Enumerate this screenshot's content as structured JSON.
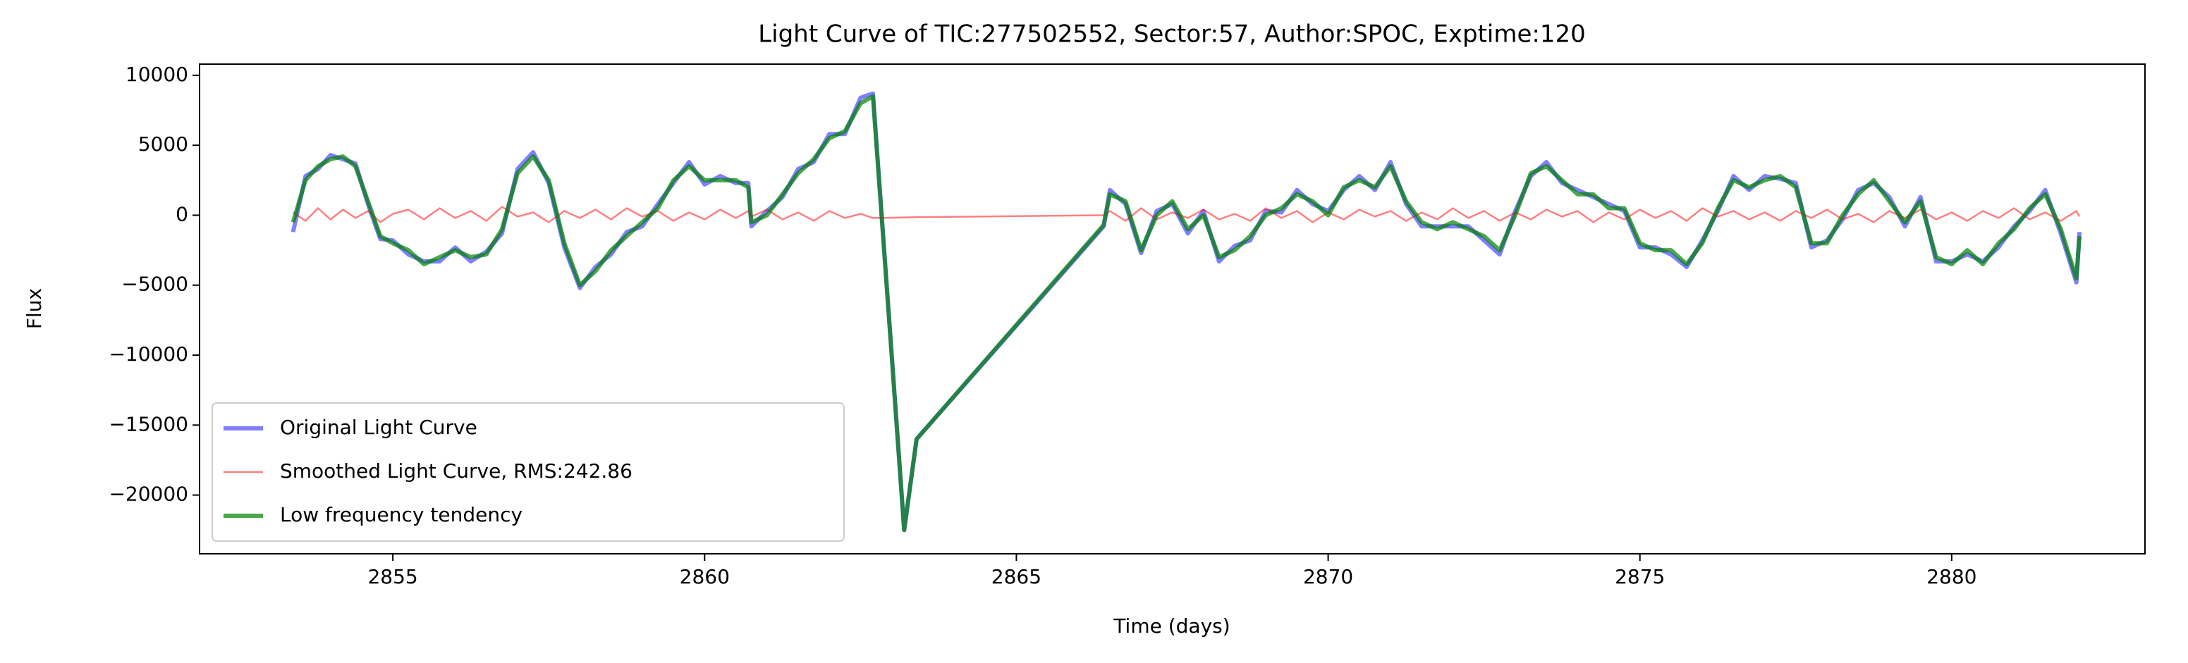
{
  "chart_data": {
    "type": "line",
    "title": "Light Curve of TIC:277502552, Sector:57, Author:SPOC, Exptime:120",
    "x_label": "Time (days)",
    "y_label": "Flux",
    "xlim": [
      2851.9,
      2883.1
    ],
    "ylim": [
      -24200,
      10800
    ],
    "xticks": [
      2855,
      2860,
      2865,
      2870,
      2875,
      2880
    ],
    "yticks": [
      10000,
      5000,
      0,
      {
        "value": -5000,
        "label": "−5000"
      },
      {
        "value": -10000,
        "label": "−10000"
      },
      {
        "value": -15000,
        "label": "−15000"
      },
      {
        "value": -20000,
        "label": "−20000"
      }
    ],
    "legend": "lower left",
    "x": [
      2853.4,
      2853.6,
      2853.8,
      2854.0,
      2854.2,
      2854.4,
      2854.6,
      2854.8,
      2855.0,
      2855.25,
      2855.5,
      2855.75,
      2856.0,
      2856.25,
      2856.5,
      2856.75,
      2857.0,
      2857.25,
      2857.5,
      2857.75,
      2858.0,
      2858.25,
      2858.5,
      2858.75,
      2859.0,
      2859.25,
      2859.5,
      2859.75,
      2860.0,
      2860.25,
      2860.5,
      2860.7,
      2860.75,
      2861.0,
      2861.25,
      2861.5,
      2861.75,
      2862.0,
      2862.25,
      2862.5,
      2862.7,
      2863.0,
      2863.2,
      2863.4,
      2866.4,
      2866.5,
      2866.75,
      2867.0,
      2867.25,
      2867.5,
      2867.75,
      2868.0,
      2868.25,
      2868.5,
      2868.75,
      2869.0,
      2869.25,
      2869.5,
      2869.75,
      2870.0,
      2870.25,
      2870.5,
      2870.75,
      2871.0,
      2871.25,
      2871.5,
      2871.75,
      2872.0,
      2872.25,
      2872.5,
      2872.75,
      2873.0,
      2873.25,
      2873.5,
      2873.75,
      2874.0,
      2874.25,
      2874.5,
      2874.75,
      2875.0,
      2875.25,
      2875.5,
      2875.75,
      2876.0,
      2876.25,
      2876.5,
      2876.75,
      2877.0,
      2877.25,
      2877.5,
      2877.75,
      2878.0,
      2878.25,
      2878.5,
      2878.75,
      2879.0,
      2879.25,
      2879.5,
      2879.75,
      2880.0,
      2880.25,
      2880.5,
      2880.75,
      2881.0,
      2881.25,
      2881.5,
      2881.75,
      2882.0,
      2882.05
    ],
    "series": [
      {
        "name": "Original Light Curve",
        "color": "#0000ff",
        "opacity": 0.5,
        "width": 6,
        "values": [
          -1200,
          2800,
          3300,
          4300,
          4000,
          3700,
          800,
          -1700,
          -1800,
          -2800,
          -3300,
          -3300,
          -2300,
          -3300,
          -2600,
          -1300,
          3300,
          4500,
          2300,
          -2300,
          -5200,
          -3700,
          -2800,
          -1200,
          -800,
          800,
          2300,
          3800,
          2200,
          2800,
          2300,
          2300,
          -800,
          300,
          1300,
          3300,
          3800,
          5800,
          5800,
          8400,
          8700,
          -10000,
          -22500,
          -16000,
          -800,
          1800,
          800,
          -2700,
          300,
          800,
          -1300,
          300,
          -3300,
          -2200,
          -1800,
          300,
          200,
          1800,
          800,
          300,
          1800,
          2800,
          1800,
          3800,
          800,
          -800,
          -800,
          -800,
          -800,
          -1800,
          -2800,
          300,
          2800,
          3800,
          2300,
          1800,
          1300,
          800,
          300,
          -2300,
          -2300,
          -2800,
          -3700,
          -1800,
          300,
          2800,
          1800,
          2800,
          2600,
          2300,
          -2300,
          -1800,
          -300,
          1800,
          2300,
          1300,
          -800,
          1300,
          -3300,
          -3300,
          -2800,
          -3300,
          -2300,
          -800,
          300,
          1800,
          -1300,
          -4800,
          -1200
        ]
      },
      {
        "name": "Smoothed Light Curve, RMS:242.86",
        "color": "#ff0000",
        "opacity": 0.5,
        "width": 2.5,
        "values": [
          200,
          -400,
          500,
          -300,
          400,
          -200,
          300,
          -500,
          100,
          400,
          -300,
          500,
          -200,
          300,
          -400,
          600,
          -100,
          200,
          -500,
          300,
          -200,
          400,
          -300,
          500,
          -100,
          300,
          -400,
          200,
          -300,
          400,
          -200,
          300,
          -100,
          400,
          -300,
          200,
          -400,
          300,
          -200,
          100,
          -200,
          -180,
          -160,
          -140,
          0,
          300,
          -400,
          500,
          -300,
          200,
          -200,
          400,
          -300,
          100,
          -400,
          500,
          -200,
          300,
          -500,
          200,
          -300,
          400,
          -100,
          300,
          -400,
          200,
          -300,
          500,
          -200,
          300,
          -400,
          200,
          -300,
          400,
          -100,
          300,
          -500,
          200,
          -300,
          400,
          -200,
          300,
          -400,
          500,
          -100,
          300,
          -300,
          200,
          -400,
          300,
          -200,
          400,
          -300,
          100,
          -500,
          300,
          -200,
          400,
          -300,
          200,
          -400,
          300,
          -200,
          500,
          -300,
          200,
          -400,
          300,
          -100
        ]
      },
      {
        "name": "Low frequency tendency",
        "color": "#008000",
        "opacity": 0.7,
        "width": 6,
        "values": [
          -500,
          2500,
          3500,
          4000,
          4200,
          3500,
          1000,
          -1500,
          -2000,
          -2500,
          -3500,
          -3000,
          -2500,
          -3000,
          -2800,
          -1000,
          3000,
          4200,
          2500,
          -2000,
          -5000,
          -4000,
          -2500,
          -1500,
          -500,
          500,
          2500,
          3500,
          2500,
          2500,
          2500,
          2000,
          -500,
          0,
          1500,
          3000,
          4000,
          5500,
          6000,
          8000,
          8500,
          -10000,
          -22500,
          -16000,
          -700,
          1500,
          1000,
          -2500,
          0,
          1000,
          -1000,
          0,
          -3000,
          -2500,
          -1500,
          0,
          500,
          1500,
          1000,
          0,
          2000,
          2500,
          2000,
          3500,
          1000,
          -500,
          -1000,
          -500,
          -1000,
          -1500,
          -2500,
          0,
          3000,
          3500,
          2500,
          1500,
          1500,
          500,
          500,
          -2000,
          -2500,
          -2500,
          -3500,
          -2000,
          500,
          2500,
          2000,
          2500,
          2800,
          2000,
          -2000,
          -2000,
          0,
          1500,
          2500,
          1000,
          -500,
          1000,
          -3000,
          -3500,
          -2500,
          -3500,
          -2000,
          -1000,
          500,
          1500,
          -1000,
          -4500,
          -1500
        ]
      }
    ]
  }
}
